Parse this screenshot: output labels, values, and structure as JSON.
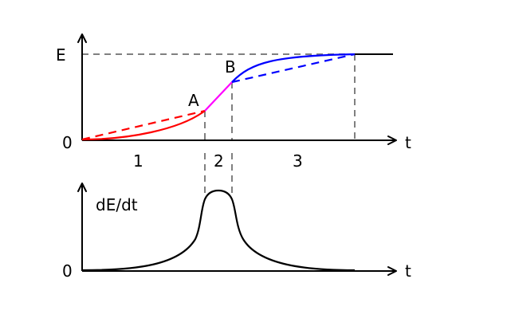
{
  "top_plot": {
    "y_axis_label": "E",
    "x_axis_label": "t",
    "origin_label": "0",
    "point_a": "A",
    "point_b": "B"
  },
  "regions": [
    {
      "label": "1",
      "color": "#ff0000"
    },
    {
      "label": "2",
      "color": "#ff00ff"
    },
    {
      "label": "3",
      "color": "#0000ff"
    }
  ],
  "bottom_plot": {
    "y_axis_label": "dE/dt",
    "x_axis_label": "t",
    "origin_label": "0"
  },
  "colors": {
    "axis": "#000000",
    "guide": "#808080",
    "phase1": "#ff0000",
    "phase2": "#ff00ff",
    "phase3": "#0000ff",
    "rate": "#000000"
  }
}
